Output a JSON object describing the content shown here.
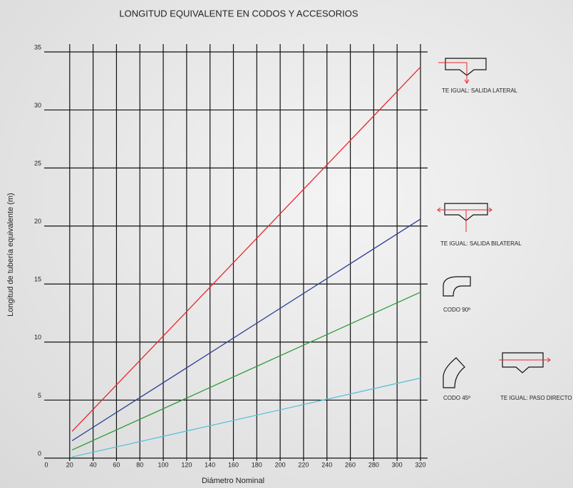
{
  "chart_data": {
    "type": "line",
    "title": "LONGITUD EQUIVALENTE EN CODOS Y ACCESORIOS",
    "x_label": "Diámetro Nominal",
    "y_label": "Longitud de tubería equivalente (m)",
    "x": [
      22,
      320
    ],
    "series": [
      {
        "color": "#e8262b",
        "values": [
          2.3,
          33.7
        ]
      },
      {
        "color": "#2b3f96",
        "values": [
          1.5,
          20.6
        ]
      },
      {
        "color": "#2a9a3a",
        "values": [
          0.7,
          14.3
        ]
      },
      {
        "color": "#5bc0dc",
        "values": [
          0.1,
          6.9
        ]
      }
    ],
    "xlim": [
      0,
      320
    ],
    "xticks": [
      0,
      20,
      40,
      60,
      80,
      100,
      120,
      140,
      160,
      180,
      200,
      220,
      240,
      260,
      280,
      300,
      320
    ],
    "ylim": [
      0,
      35
    ],
    "yticks": [
      0,
      5,
      10,
      15,
      20,
      25,
      30,
      35
    ],
    "grid": true,
    "fittings": [
      "TE IGUAL: SALIDA  LATERAL",
      "TE IGUAL: SALIDA   BILATERAL",
      "CODO 90º",
      "CODO 45º",
      "TE IGUAL: PASO  DIRECTO"
    ]
  }
}
